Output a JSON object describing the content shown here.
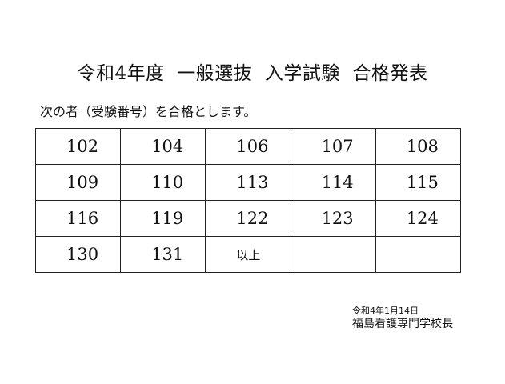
{
  "title": "令和4年度  一般選抜  入学試験  合格発表",
  "intro": "次の者（受験番号）を合格とします。",
  "table": {
    "rows": [
      [
        "102",
        "104",
        "106",
        "107",
        "108"
      ],
      [
        "109",
        "110",
        "113",
        "114",
        "115"
      ],
      [
        "116",
        "119",
        "122",
        "123",
        "124"
      ],
      [
        "130",
        "131",
        "以上",
        "",
        ""
      ]
    ]
  },
  "footer": {
    "date": "令和4年1月14日",
    "issuer": "福島看護専門学校長"
  }
}
